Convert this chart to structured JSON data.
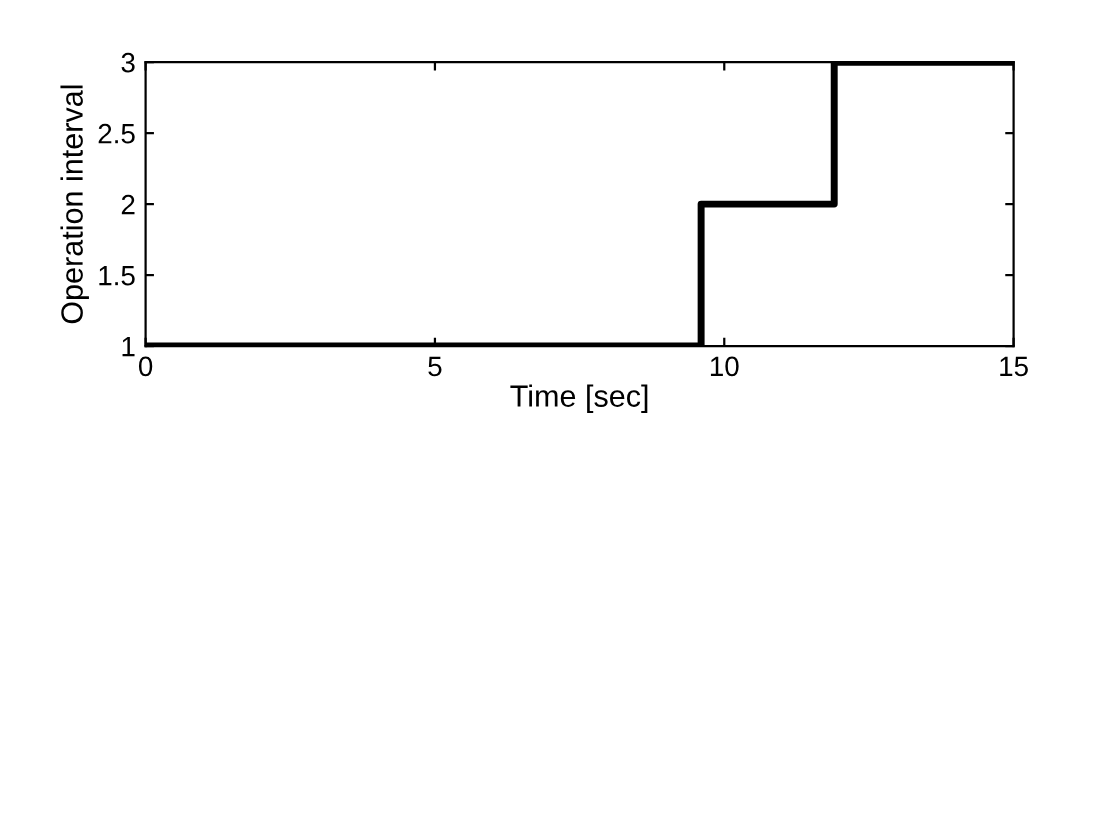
{
  "chart_data": {
    "type": "step",
    "xlabel": "Time [sec]",
    "ylabel": "Operation interval",
    "x": [
      0,
      9.6,
      11.9,
      15
    ],
    "series": [
      {
        "color": "#000000",
        "values": [
          1,
          2,
          3,
          3
        ]
      }
    ],
    "xlim": [
      0,
      15
    ],
    "xticks": [
      0,
      5,
      10,
      15
    ],
    "ylim": [
      1,
      3
    ],
    "yticks": [
      1,
      1.5,
      2,
      2.5,
      3
    ],
    "grid": false,
    "legend": false,
    "marker": "none",
    "line_style": "solid"
  }
}
